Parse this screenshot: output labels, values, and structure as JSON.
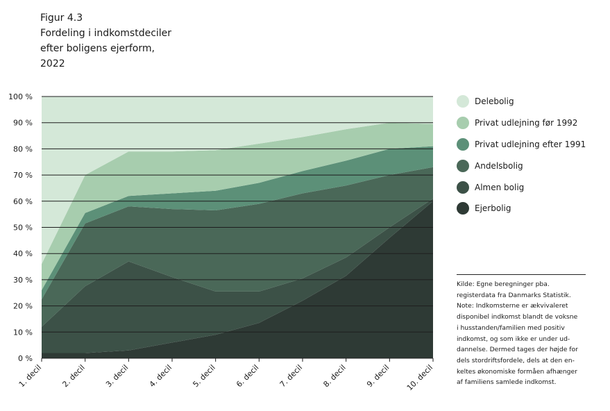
{
  "figure": {
    "label": "Figur 4.3",
    "title_lines": [
      "Fordeling i indkomstdeciler",
      "efter boligens ejerform,",
      "2022"
    ]
  },
  "chart_data": {
    "type": "area",
    "stacked": true,
    "title": "Fordeling i indkomstdeciler efter boligens ejerform, 2022",
    "xlabel": "",
    "ylabel": "",
    "ylim": [
      0,
      100
    ],
    "grid": true,
    "legend_position": "right",
    "categories": [
      "1. decil",
      "2. decil",
      "3. decil",
      "4. decil",
      "5. decil",
      "6. decil",
      "7. decil",
      "8. decil",
      "9. decil",
      "10. decil"
    ],
    "y_ticks": [
      "0 %",
      "10 %",
      "20 %",
      "30 %",
      "40 %",
      "50 %",
      "60 %",
      "70 %",
      "80 %",
      "90 %",
      "100 %"
    ],
    "series": [
      {
        "name": "Ejerbolig",
        "color": "#2e3a35",
        "values": [
          2,
          2,
          3,
          6,
          9,
          13.5,
          22,
          31.5,
          46,
          60
        ]
      },
      {
        "name": "Almen bolig",
        "color": "#3c5147",
        "values": [
          10,
          25.5,
          34,
          25,
          16.5,
          12,
          8.5,
          7,
          4,
          1
        ]
      },
      {
        "name": "Andelsbolig",
        "color": "#4a6858",
        "values": [
          10.5,
          24,
          21,
          26,
          31,
          33.5,
          32.5,
          27.5,
          20,
          12
        ]
      },
      {
        "name": "Privat udlejning efter 1991",
        "color": "#5c9078",
        "values": [
          3.5,
          4,
          4,
          6,
          7.5,
          8,
          8.5,
          9.5,
          10,
          8
        ]
      },
      {
        "name": "Privat udlejning før 1992",
        "color": "#a7cdae",
        "values": [
          10,
          14.5,
          17,
          16,
          15.5,
          15,
          13,
          12,
          10,
          8.5
        ]
      },
      {
        "name": "Delebolig",
        "color": "#d4e8d8",
        "values": [
          64,
          30,
          21,
          21,
          20.5,
          18,
          15.5,
          12.5,
          10,
          10.5
        ]
      }
    ]
  },
  "legend_items": [
    {
      "label": "Delebolig",
      "color": "#d4e8d8"
    },
    {
      "label": "Privat udlejning før 1992",
      "color": "#a7cdae"
    },
    {
      "label": "Privat udlejning efter 1991",
      "color": "#5c9078"
    },
    {
      "label": "Andelsbolig",
      "color": "#4a6858"
    },
    {
      "label": "Almen bolig",
      "color": "#3c5147"
    },
    {
      "label": "Ejerbolig",
      "color": "#2e3a35"
    }
  ],
  "note_lines": [
    "Kilde: Egne beregninger pba.",
    "registerdata fra Danmarks Statistik.",
    "Note: Indkomsterne er ækvivaleret",
    "disponibel indkomst blandt de voksne",
    "i husstanden/familien med positiv",
    "indkomst, og som ikke er under ud-",
    "dannelse. Dermed tages der højde for",
    "dels stordriftsfordele, dels at den en-",
    "keltes økonomiske formåen afhænger",
    "af familiens samlede indkomst."
  ]
}
